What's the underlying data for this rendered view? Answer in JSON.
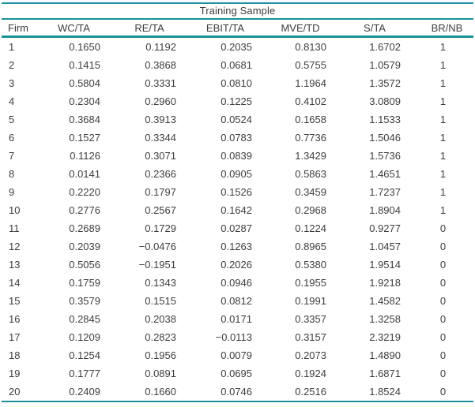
{
  "table": {
    "title": "Training Sample",
    "columns": [
      "Firm",
      "WC/TA",
      "RE/TA",
      "EBIT/TA",
      "MVE/TD",
      "S/TA",
      "BR/NB"
    ],
    "rows": [
      [
        "1",
        "0.1650",
        "0.1192",
        "0.2035",
        "0.8130",
        "1.6702",
        "1"
      ],
      [
        "2",
        "0.1415",
        "0.3868",
        "0.0681",
        "0.5755",
        "1.0579",
        "1"
      ],
      [
        "3",
        "0.5804",
        "0.3331",
        "0.0810",
        "1.1964",
        "1.3572",
        "1"
      ],
      [
        "4",
        "0.2304",
        "0.2960",
        "0.1225",
        "0.4102",
        "3.0809",
        "1"
      ],
      [
        "5",
        "0.3684",
        "0.3913",
        "0.0524",
        "0.1658",
        "1.1533",
        "1"
      ],
      [
        "6",
        "0.1527",
        "0.3344",
        "0.0783",
        "0.7736",
        "1.5046",
        "1"
      ],
      [
        "7",
        "0.1126",
        "0.3071",
        "0.0839",
        "1.3429",
        "1.5736",
        "1"
      ],
      [
        "8",
        "0.0141",
        "0.2366",
        "0.0905",
        "0.5863",
        "1.4651",
        "1"
      ],
      [
        "9",
        "0.2220",
        "0.1797",
        "0.1526",
        "0.3459",
        "1.7237",
        "1"
      ],
      [
        "10",
        "0.2776",
        "0.2567",
        "0.1642",
        "0.2968",
        "1.8904",
        "1"
      ],
      [
        "11",
        "0.2689",
        "0.1729",
        "0.0287",
        "0.1224",
        "0.9277",
        "0"
      ],
      [
        "12",
        "0.2039",
        "−0.0476",
        "0.1263",
        "0.8965",
        "1.0457",
        "0"
      ],
      [
        "13",
        "0.5056",
        "−0.1951",
        "0.2026",
        "0.5380",
        "1.9514",
        "0"
      ],
      [
        "14",
        "0.1759",
        "0.1343",
        "0.0946",
        "0.1955",
        "1.9218",
        "0"
      ],
      [
        "15",
        "0.3579",
        "0.1515",
        "0.0812",
        "0.1991",
        "1.4582",
        "0"
      ],
      [
        "16",
        "0.2845",
        "0.2038",
        "0.0171",
        "0.3357",
        "1.3258",
        "0"
      ],
      [
        "17",
        "0.1209",
        "0.2823",
        "−0.0113",
        "0.3157",
        "2.3219",
        "0"
      ],
      [
        "18",
        "0.1254",
        "0.1956",
        "0.0079",
        "0.2073",
        "1.4890",
        "0"
      ],
      [
        "19",
        "0.1777",
        "0.0891",
        "0.0695",
        "0.1924",
        "1.6871",
        "0"
      ],
      [
        "20",
        "0.2409",
        "0.1660",
        "0.0746",
        "0.2516",
        "1.8524",
        "0"
      ]
    ]
  },
  "colors": {
    "rule": "#1a929b",
    "text": "#3e3e3e",
    "background": "#ffffff"
  }
}
